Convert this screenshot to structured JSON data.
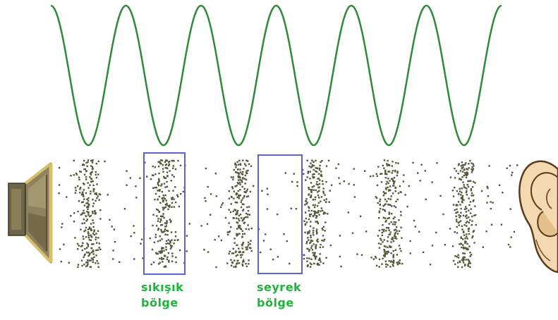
{
  "colors": {
    "wave": "#2f8a3a",
    "particle": "#55553a",
    "highlight_box": "#5a62d6",
    "label_text": "#1fb33a",
    "speaker_cone": "#7a6a4a",
    "speaker_rim": "#d8c068",
    "ear_fill": "#f2d9b0",
    "ear_stroke": "#5a3a1a"
  },
  "icons": {
    "speaker": "loudspeaker-icon",
    "ear": "ear-icon"
  },
  "wave": {
    "cycles": 6
  },
  "labels": {
    "compression": {
      "line1": "sıkışık",
      "line2": "bölge"
    },
    "rarefaction": {
      "line1": "seyrek",
      "line2": "bölge"
    }
  }
}
